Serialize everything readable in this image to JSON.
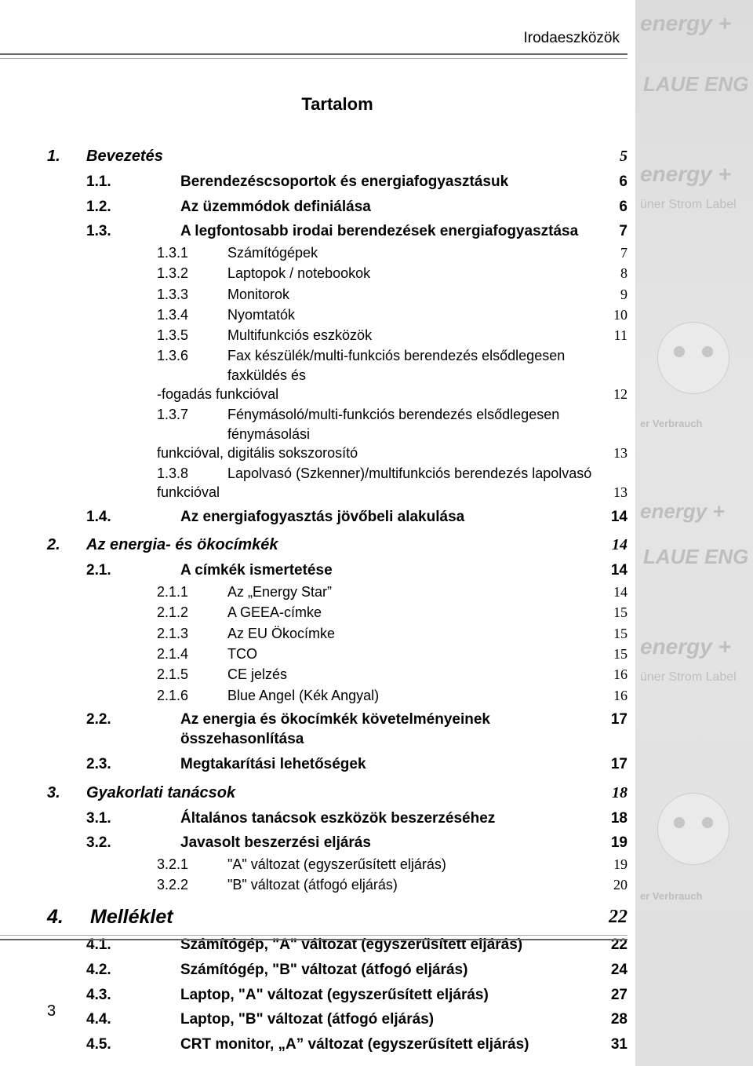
{
  "header": {
    "section_title": "Irodaeszközök"
  },
  "toc": {
    "title": "Tartalom",
    "items": [
      {
        "lvl": "l1",
        "num": "1.",
        "label": "Bevezetés",
        "pg": "5"
      },
      {
        "lvl": "l2",
        "num": "1.1.",
        "label": "Berendezéscsoportok és energiafogyasztásuk",
        "pg": "6"
      },
      {
        "lvl": "l2",
        "num": "1.2.",
        "label": "Az üzemmódok definiálása",
        "pg": "6"
      },
      {
        "lvl": "l2",
        "num": "1.3.",
        "label": "A legfontosabb irodai berendezések energiafogyasztása",
        "pg": "7"
      },
      {
        "lvl": "l3",
        "num": "1.3.1",
        "label": "Számítógépek",
        "pg": "7"
      },
      {
        "lvl": "l3",
        "num": "1.3.2",
        "label": "Laptopok / notebookok",
        "pg": "8"
      },
      {
        "lvl": "l3",
        "num": "1.3.3",
        "label": "Monitorok",
        "pg": "9"
      },
      {
        "lvl": "l3",
        "num": "1.3.4",
        "label": "Nyomtatók",
        "pg": "10"
      },
      {
        "lvl": "l3",
        "num": "1.3.5",
        "label": "Multifunkciós eszközök",
        "pg": "11"
      },
      {
        "lvl": "l3wrap",
        "num": "1.3.6",
        "label_a": "Fax készülék/multi-funkciós berendezés elsődlegesen faxküldés és",
        "label_b": "-fogadás funkcióval",
        "pg": "12"
      },
      {
        "lvl": "l3wrap",
        "num": "1.3.7",
        "label_a": "Fénymásoló/multi-funkciós berendezés elsődlegesen fénymásolási",
        "label_b": "funkcióval, digitális  sokszorosító",
        "pg": "13"
      },
      {
        "lvl": "l3wrap",
        "num": "1.3.8",
        "label_a": "Lapolvasó (Szkenner)/multifunkciós berendezés lapolvasó",
        "label_b": "funkcióval",
        "pg": "13"
      },
      {
        "lvl": "l2",
        "num": "1.4.",
        "label": "Az energiafogyasztás jövőbeli alakulása",
        "pg": "14"
      },
      {
        "lvl": "l1",
        "num": "2.",
        "label": "Az energia- és ökocímkék",
        "pg": "14"
      },
      {
        "lvl": "l2",
        "num": "2.1.",
        "label": "A címkék ismertetése",
        "pg": "14"
      },
      {
        "lvl": "l3",
        "num": "2.1.1",
        "label": "Az „Energy Star”",
        "pg": "14"
      },
      {
        "lvl": "l3",
        "num": "2.1.2",
        "label": "A GEEA-címke",
        "pg": "15"
      },
      {
        "lvl": "l3",
        "num": "2.1.3",
        "label": "Az EU Ökocímke",
        "pg": "15"
      },
      {
        "lvl": "l3",
        "num": "2.1.4",
        "label": "TCO",
        "pg": "15"
      },
      {
        "lvl": "l3",
        "num": "2.1.5",
        "label": "CE jelzés",
        "pg": "16"
      },
      {
        "lvl": "l3",
        "num": "2.1.6",
        "label": "Blue Angel (Kék Angyal)",
        "pg": "16"
      },
      {
        "lvl": "l2",
        "num": "2.2.",
        "label": "Az energia és ökocímkék követelményeinek összehasonlítása",
        "pg": "17"
      },
      {
        "lvl": "l2",
        "num": "2.3.",
        "label": "Megtakarítási lehetőségek",
        "pg": "17"
      },
      {
        "lvl": "l1",
        "num": "3.",
        "label": "Gyakorlati tanácsok",
        "pg": "18"
      },
      {
        "lvl": "l2",
        "num": "3.1.",
        "label": "Általános tanácsok eszközök beszerzéséhez",
        "pg": "18"
      },
      {
        "lvl": "l2",
        "num": "3.2.",
        "label": "Javasolt beszerzési eljárás",
        "pg": "19"
      },
      {
        "lvl": "l3",
        "num": "3.2.1",
        "label": "\"A\" változat (egyszerűsített eljárás)",
        "pg": "19"
      },
      {
        "lvl": "l3",
        "num": "3.2.2",
        "label": "\"B\" változat (átfogó eljárás)",
        "pg": "20"
      },
      {
        "lvl": "l1big",
        "num": "4.",
        "label": "Melléklet",
        "pg": "22"
      },
      {
        "lvl": "l2",
        "num": "4.1.",
        "label": "Számítógép, \"A\" változat (egyszerűsített eljárás)",
        "pg": "22"
      },
      {
        "lvl": "l2",
        "num": "4.2.",
        "label": "Számítógép, \"B\" változat (átfogó eljárás)",
        "pg": "24"
      },
      {
        "lvl": "l2",
        "num": "4.3.",
        "label": "Laptop, \"A\" változat (egyszerűsített eljárás)",
        "pg": "27"
      },
      {
        "lvl": "l2",
        "num": "4.4.",
        "label": "Laptop, \"B\" változat (átfogó eljárás)",
        "pg": "28"
      },
      {
        "lvl": "l2",
        "num": "4.5.",
        "label": "CRT monitor, „A” változat (egyszerűsített eljárás)",
        "pg": "31"
      }
    ]
  },
  "footer": {
    "page_number": "3"
  },
  "sidebar_text": {
    "energy1": "energy +",
    "laue": "LAUE ENG",
    "energy2": "energy +",
    "strom": "üner Strom Label",
    "verbrauch": "er Verbrauch",
    "energy3": "energy +"
  },
  "colors": {
    "text": "#000000",
    "rule": "#666666",
    "sidebar_bg": "#dcdcdc",
    "sidebar_text": "#bfbfbf"
  }
}
